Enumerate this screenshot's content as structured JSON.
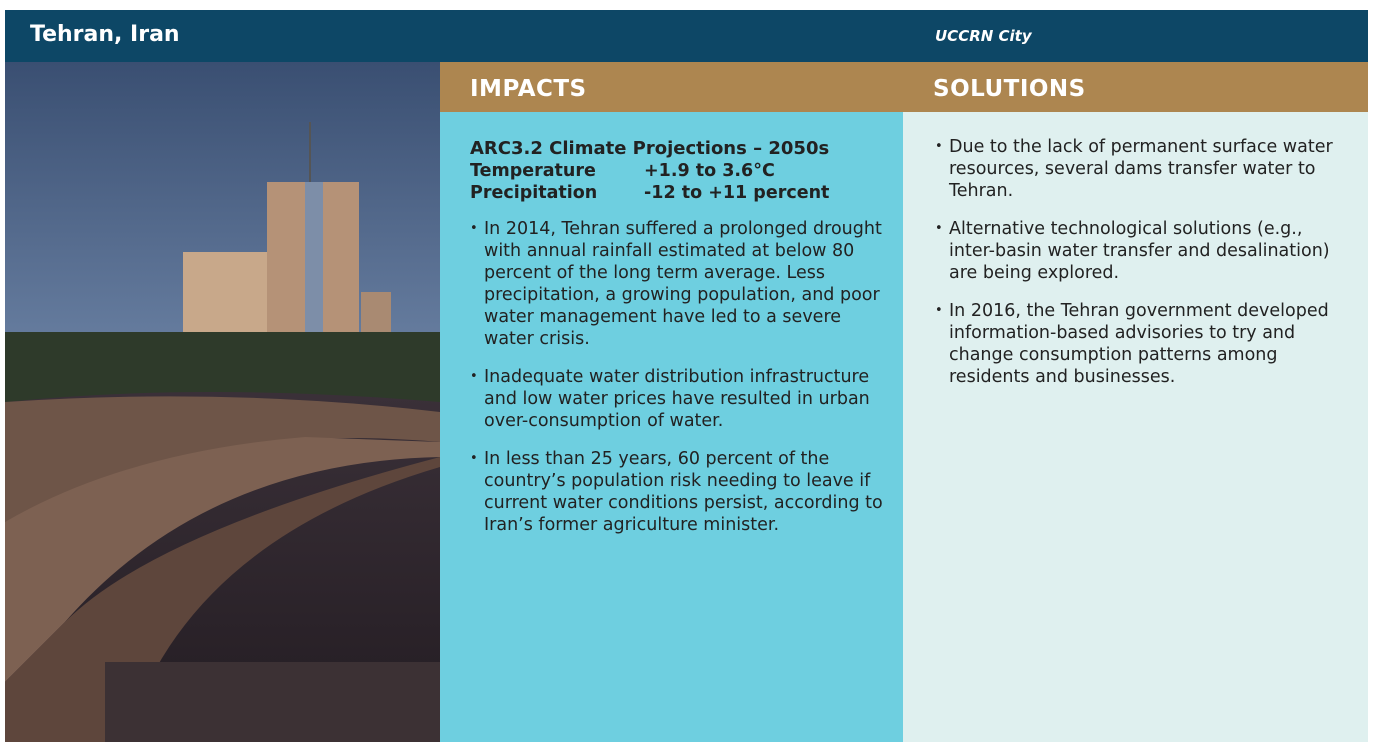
{
  "header": {
    "title": "Tehran, Iran",
    "subtitle": "UCCRN City"
  },
  "impacts": {
    "heading": "IMPACTS",
    "projections": {
      "title": "ARC3.2 Climate Projections – 2050s",
      "rows": [
        [
          "Temperature",
          "+1.9 to 3.6°C"
        ],
        [
          "Precipitation",
          "-12 to +11 percent"
        ]
      ]
    },
    "bullets": [
      "In 2014, Tehran suffered a prolonged drought with annual rainfall estimated at below 80 percent of the long term average. Less precipitation, a growing population, and poor water management have led to a severe water crisis.",
      "Inadequate water distribution infrastructure and low water prices have resulted in urban over-consumption of water.",
      "In less than 25 years, 60 percent of the country’s population risk needing to leave if current water conditions persist, according to Iran’s former agriculture minister."
    ]
  },
  "solutions": {
    "heading": "SOLUTIONS",
    "bullets": [
      "Due to the lack of permanent surface water resources, several dams transfer water to Tehran.",
      "Alternative technological solutions (e.g., inter-basin water transfer and desalination) are being explored.",
      "In 2016, the Tehran government developed information-based advisories to try and change consumption patterns among residents and businesses."
    ]
  }
}
